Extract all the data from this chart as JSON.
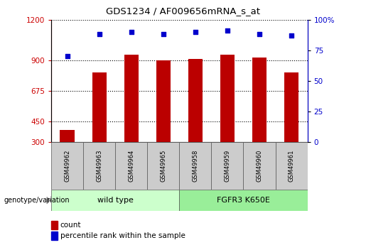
{
  "title": "GDS1234 / AF009656mRNA_s_at",
  "categories": [
    "GSM49962",
    "GSM49963",
    "GSM49964",
    "GSM49965",
    "GSM49958",
    "GSM49959",
    "GSM49960",
    "GSM49961"
  ],
  "group1_label": "wild type",
  "group2_label": "FGFR3 K650E",
  "group_label_prefix": "genotype/variation",
  "count_values": [
    390,
    810,
    940,
    900,
    910,
    940,
    920,
    810
  ],
  "percentile_values": [
    70,
    88,
    90,
    88,
    90,
    91,
    88,
    87
  ],
  "bar_color": "#BB0000",
  "dot_color": "#0000CC",
  "ylim_left": [
    300,
    1200
  ],
  "yticks_left": [
    300,
    450,
    675,
    900,
    1200
  ],
  "ylim_right": [
    0,
    100
  ],
  "yticks_right": [
    0,
    25,
    50,
    75,
    100
  ],
  "right_yticklabels": [
    "0",
    "25",
    "50",
    "75",
    "100%"
  ],
  "plot_bg": "#FFFFFF",
  "label_cell_color": "#CCCCCC",
  "group1_color": "#CCFFCC",
  "group2_color": "#99EE99",
  "tick_label_color": "#CC0000",
  "right_tick_color": "#0000CC",
  "legend_count_label": "count",
  "legend_pct_label": "percentile rank within the sample"
}
